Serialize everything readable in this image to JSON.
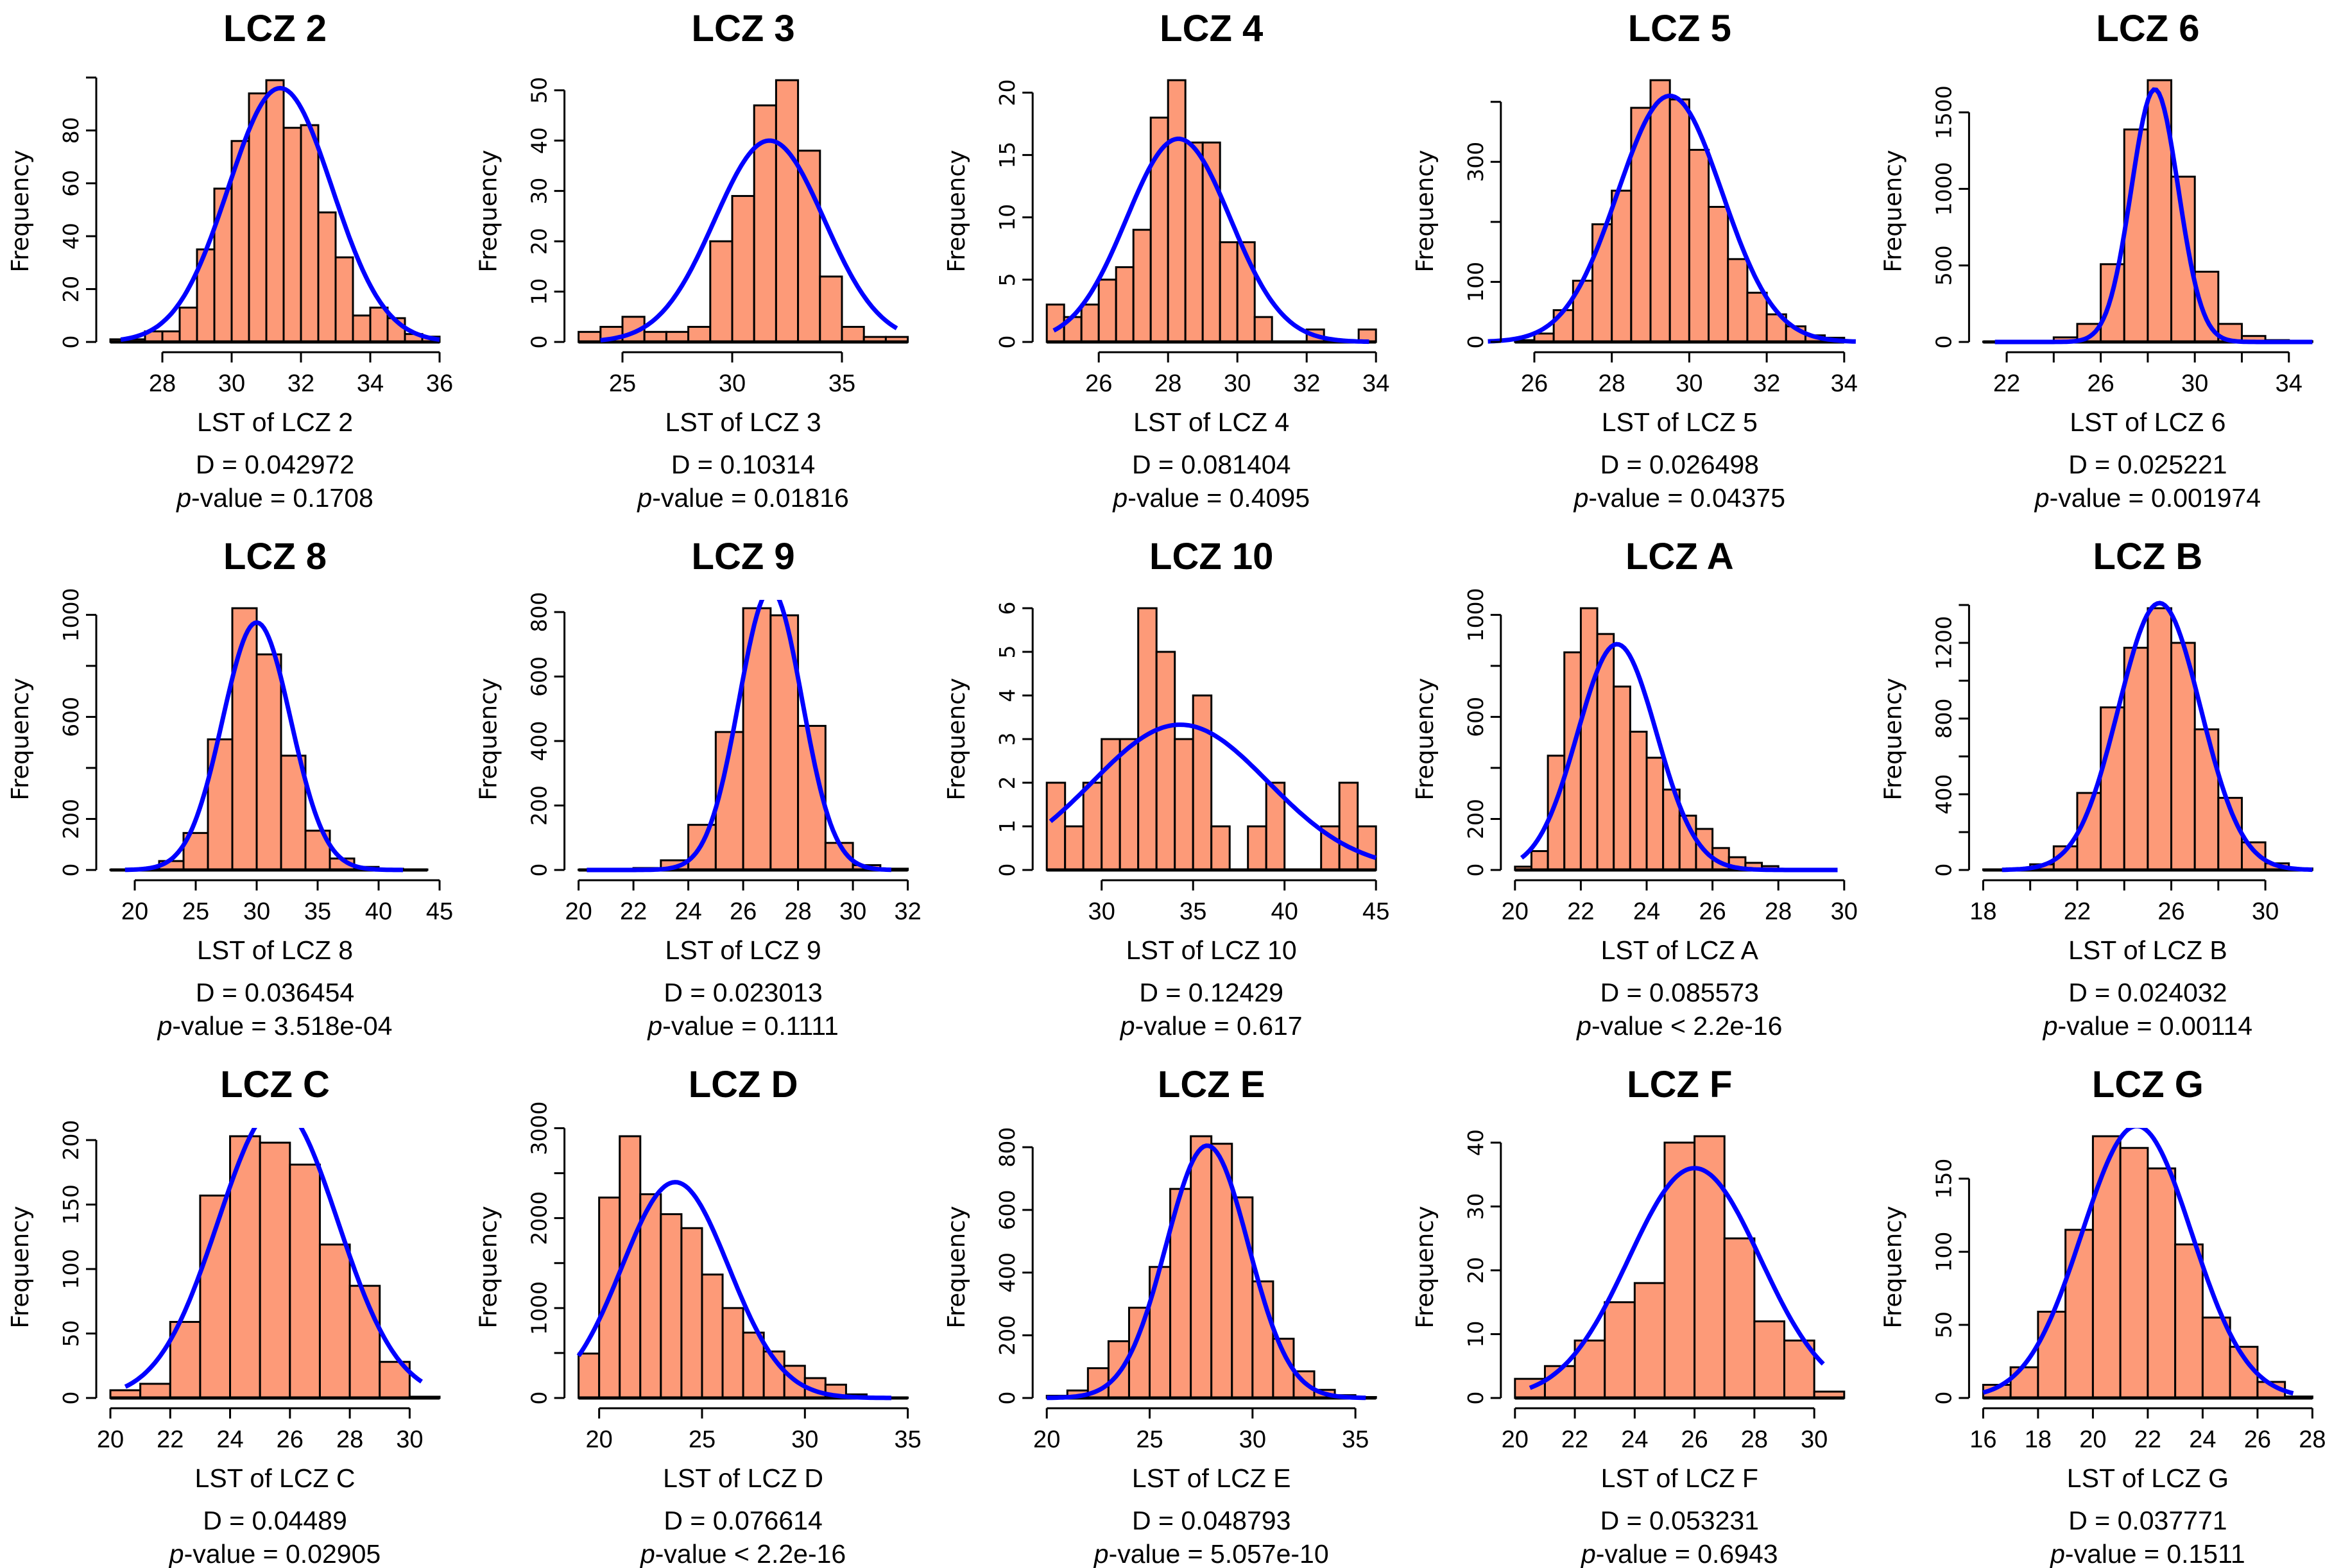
{
  "style": {
    "bar_fill": "#fd9a78",
    "bar_stroke": "#000000",
    "curve_color": "#0000ff"
  },
  "chart_data": [
    {
      "type": "bar",
      "title": "LCZ 2",
      "xlabel": "LST of LCZ 2",
      "ylabel": "Frequency",
      "stat_d": "D = 0.042972",
      "stat_p_italic": "p",
      "stat_p": "-value = 0.1708",
      "bin_start": 26.5,
      "bin_width": 0.5,
      "counts": [
        1,
        1,
        4,
        4,
        13,
        35,
        58,
        76,
        94,
        99,
        81,
        82,
        49,
        32,
        10,
        13,
        9,
        3,
        2
      ],
      "xticks": [
        28,
        30,
        32,
        34,
        36
      ],
      "xtick_labels": [
        "28",
        "30",
        "32",
        "34",
        "36"
      ],
      "yticks": [
        0,
        20,
        40,
        60,
        80,
        100
      ],
      "ytick_labels": [
        "0",
        "20",
        "40",
        "60",
        "80",
        ""
      ],
      "curve": {
        "mean": 31.4,
        "sd": 1.5,
        "peak": 96,
        "range": [
          26.8,
          36
        ]
      }
    },
    {
      "type": "bar",
      "title": "LCZ 3",
      "xlabel": "LST of LCZ 3",
      "ylabel": "Frequency",
      "stat_d": "D = 0.10314",
      "stat_p_italic": "p",
      "stat_p": "-value = 0.01816",
      "bin_start": 23,
      "bin_width": 1,
      "counts": [
        2,
        3,
        5,
        2,
        2,
        3,
        20,
        29,
        47,
        52,
        38,
        13,
        3,
        1,
        1
      ],
      "xticks": [
        25,
        30,
        35
      ],
      "xtick_labels": [
        "25",
        "30",
        "35"
      ],
      "yticks": [
        0,
        10,
        20,
        30,
        40,
        50
      ],
      "ytick_labels": [
        "0",
        "10",
        "20",
        "30",
        "40",
        "50"
      ],
      "curve": {
        "mean": 31.7,
        "sd": 2.5,
        "peak": 40,
        "range": [
          24,
          37.5
        ]
      }
    },
    {
      "type": "bar",
      "title": "LCZ 4",
      "xlabel": "LST of LCZ 4",
      "ylabel": "Frequency",
      "stat_d": "D = 0.081404",
      "stat_p_italic": "p",
      "stat_p": "-value = 0.4095",
      "bin_start": 24.5,
      "bin_width": 0.5,
      "counts": [
        3,
        2,
        3,
        5,
        6,
        9,
        18,
        21,
        16,
        16,
        8,
        8,
        2,
        0,
        0,
        1,
        0,
        0,
        1
      ],
      "xticks": [
        26,
        28,
        30,
        32,
        34
      ],
      "xtick_labels": [
        "26",
        "28",
        "30",
        "32",
        "34"
      ],
      "yticks": [
        0,
        5,
        10,
        15,
        20
      ],
      "ytick_labels": [
        "0",
        "5",
        "10",
        "15",
        "20"
      ],
      "curve": {
        "mean": 28.3,
        "sd": 1.5,
        "peak": 16.3,
        "range": [
          24.7,
          33.8
        ]
      }
    },
    {
      "type": "bar",
      "title": "LCZ 5",
      "xlabel": "LST of LCZ 5",
      "ylabel": "Frequency",
      "stat_d": "D = 0.026498",
      "stat_p_italic": "p",
      "stat_p": "-value = 0.04375",
      "bin_start": 25.5,
      "bin_width": 0.5,
      "counts": [
        3,
        14,
        53,
        102,
        196,
        252,
        390,
        436,
        404,
        320,
        225,
        138,
        82,
        46,
        26,
        11,
        7
      ],
      "xticks": [
        26,
        28,
        30,
        32,
        34
      ],
      "xtick_labels": [
        "26",
        "28",
        "30",
        "32",
        "34"
      ],
      "yticks": [
        0,
        100,
        200,
        300,
        400
      ],
      "ytick_labels": [
        "0",
        "100",
        "",
        "300",
        ""
      ],
      "curve": {
        "mean": 29.5,
        "sd": 1.35,
        "peak": 410,
        "range": [
          24.8,
          34.3
        ]
      }
    },
    {
      "type": "bar",
      "title": "LCZ 6",
      "xlabel": "LST of LCZ 6",
      "ylabel": "Frequency",
      "stat_d": "D = 0.025221",
      "stat_p_italic": "p",
      "stat_p": "-value = 0.001974",
      "bin_start": 21,
      "bin_width": 1,
      "counts": [
        2,
        3,
        5,
        30,
        118,
        508,
        1388,
        1710,
        1080,
        459,
        118,
        39,
        12,
        5
      ],
      "xticks": [
        22,
        24,
        26,
        28,
        30,
        32,
        34
      ],
      "xtick_labels": [
        "22",
        "",
        "26",
        "",
        "30",
        "",
        "34"
      ],
      "yticks": [
        0,
        500,
        1000,
        1500
      ],
      "ytick_labels": [
        "0",
        "500",
        "1000",
        "1500"
      ],
      "curve": {
        "mean": 28.3,
        "sd": 1.0,
        "peak": 1650,
        "range": [
          21.5,
          35
        ]
      }
    },
    {
      "type": "bar",
      "title": "LCZ 8",
      "xlabel": "LST of LCZ 8",
      "ylabel": "Frequency",
      "stat_d": "D = 0.036454",
      "stat_p_italic": "p",
      "stat_p": "-value = 3.518e-04",
      "bin_start": 18,
      "bin_width": 2,
      "counts": [
        1,
        4,
        35,
        145,
        512,
        1026,
        845,
        448,
        154,
        45,
        12,
        5,
        2
      ],
      "xticks": [
        20,
        25,
        30,
        35,
        40,
        45
      ],
      "xtick_labels": [
        "20",
        "25",
        "30",
        "35",
        "40",
        "45"
      ],
      "yticks": [
        0,
        200,
        400,
        600,
        800,
        1000
      ],
      "ytick_labels": [
        "0",
        "200",
        "",
        "600",
        "",
        "1000"
      ],
      "curve": {
        "mean": 30,
        "sd": 2.8,
        "peak": 970,
        "range": [
          19.2,
          42
        ]
      }
    },
    {
      "type": "bar",
      "title": "LCZ 9",
      "xlabel": "LST of LCZ 9",
      "ylabel": "Frequency",
      "stat_d": "D = 0.023013",
      "stat_p_italic": "p",
      "stat_p": "-value = 0.1111",
      "bin_start": 20,
      "bin_width": 1,
      "counts": [
        1,
        2,
        6,
        30,
        140,
        428,
        812,
        790,
        447,
        84,
        15,
        4
      ],
      "xticks": [
        20,
        22,
        24,
        26,
        28,
        30,
        32
      ],
      "xtick_labels": [
        "20",
        "22",
        "24",
        "26",
        "28",
        "30",
        "32"
      ],
      "yticks": [
        0,
        200,
        400,
        600,
        800
      ],
      "ytick_labels": [
        "0",
        "200",
        "400",
        "600",
        "800"
      ],
      "curve": {
        "mean": 27,
        "sd": 1.15,
        "peak": 870,
        "range": [
          20.3,
          31.4
        ]
      }
    },
    {
      "type": "bar",
      "title": "LCZ 10",
      "xlabel": "LST of LCZ 10",
      "ylabel": "Frequency",
      "stat_d": "D = 0.12429",
      "stat_p_italic": "p",
      "stat_p": "-value = 0.617",
      "bin_start": 27,
      "bin_width": 1,
      "counts": [
        2,
        1,
        2,
        3,
        3,
        6,
        5,
        3,
        4,
        1,
        0,
        1,
        2,
        0,
        0,
        1,
        2,
        1
      ],
      "xticks": [
        30,
        35,
        40,
        45
      ],
      "xtick_labels": [
        "30",
        "35",
        "40",
        "45"
      ],
      "yticks": [
        0,
        1,
        2,
        3,
        4,
        5,
        6
      ],
      "ytick_labels": [
        "0",
        "1",
        "2",
        "3",
        "4",
        "5",
        "6"
      ],
      "curve": {
        "mean": 34.3,
        "sd": 4.8,
        "peak": 3.33,
        "range": [
          27.2,
          45
        ]
      }
    },
    {
      "type": "bar",
      "title": "LCZ A",
      "xlabel": "LST of LCZ A",
      "ylabel": "Frequency",
      "stat_d": "D = 0.085573",
      "stat_p_italic": "p",
      "stat_p": "-value < 2.2e-16",
      "bin_start": 20,
      "bin_width": 0.5,
      "counts": [
        13,
        74,
        448,
        853,
        1026,
        925,
        719,
        542,
        440,
        315,
        213,
        161,
        86,
        50,
        28,
        15
      ],
      "xticks": [
        20,
        22,
        24,
        26,
        28,
        30
      ],
      "xtick_labels": [
        "20",
        "22",
        "24",
        "26",
        "28",
        "30"
      ],
      "yticks": [
        0,
        200,
        400,
        600,
        800,
        1000
      ],
      "ytick_labels": [
        "0",
        "200",
        "",
        "600",
        "",
        "1000"
      ],
      "curve": {
        "mean": 23.1,
        "sd": 1.2,
        "peak": 885,
        "range": [
          20.2,
          29.8
        ]
      }
    },
    {
      "type": "bar",
      "title": "LCZ B",
      "xlabel": "LST of LCZ B",
      "ylabel": "Frequency",
      "stat_d": "D = 0.024032",
      "stat_p_italic": "p",
      "stat_p": "-value = 0.00114",
      "bin_start": 18,
      "bin_width": 1,
      "counts": [
        3,
        8,
        30,
        125,
        407,
        859,
        1174,
        1383,
        1200,
        743,
        381,
        146,
        35,
        8
      ],
      "xticks": [
        18,
        20,
        22,
        24,
        26,
        28,
        30
      ],
      "xtick_labels": [
        "18",
        "",
        "22",
        "",
        "26",
        "",
        "30"
      ],
      "yticks": [
        0,
        200,
        400,
        600,
        800,
        1000,
        1200,
        1400
      ],
      "ytick_labels": [
        "0",
        "",
        "400",
        "",
        "800",
        "",
        "1200",
        ""
      ],
      "curve": {
        "mean": 25.5,
        "sd": 1.75,
        "peak": 1410,
        "range": [
          18.8,
          32
        ]
      }
    },
    {
      "type": "bar",
      "title": "LCZ C",
      "xlabel": "LST of LCZ C",
      "ylabel": "Frequency",
      "stat_d": "D = 0.04489",
      "stat_p_italic": "p",
      "stat_p": "-value = 0.02905",
      "bin_start": 20,
      "bin_width": 1,
      "counts": [
        6,
        11,
        59,
        157,
        203,
        198,
        181,
        119,
        87,
        28,
        1
      ],
      "xticks": [
        20,
        22,
        24,
        26,
        28,
        30
      ],
      "xtick_labels": [
        "20",
        "22",
        "24",
        "26",
        "28",
        "30"
      ],
      "yticks": [
        0,
        50,
        100,
        150,
        200
      ],
      "ytick_labels": [
        "0",
        "50",
        "100",
        "150",
        "200"
      ],
      "curve": {
        "mean": 25.6,
        "sd": 2.0,
        "peak": 226,
        "range": [
          20.5,
          30.4
        ]
      }
    },
    {
      "type": "bar",
      "title": "LCZ D",
      "xlabel": "LST of LCZ D",
      "ylabel": "Frequency",
      "stat_d": "D = 0.076614",
      "stat_p_italic": "p",
      "stat_p": "-value < 2.2e-16",
      "bin_start": 19,
      "bin_width": 1,
      "counts": [
        494,
        2229,
        2911,
        2266,
        2044,
        1889,
        1373,
        1000,
        727,
        517,
        358,
        221,
        148,
        40,
        10,
        5
      ],
      "xticks": [
        20,
        25,
        30,
        35
      ],
      "xtick_labels": [
        "20",
        "25",
        "30",
        "35"
      ],
      "yticks": [
        0,
        500,
        1000,
        1500,
        2000,
        2500,
        3000
      ],
      "ytick_labels": [
        "0",
        "",
        "1000",
        "",
        "2000",
        "",
        "3000"
      ],
      "curve": {
        "mean": 23.7,
        "sd": 2.6,
        "peak": 2400,
        "range": [
          19,
          34.2
        ]
      }
    },
    {
      "type": "bar",
      "title": "LCZ E",
      "xlabel": "LST of LCZ E",
      "ylabel": "Frequency",
      "stat_d": "D = 0.048793",
      "stat_p_italic": "p",
      "stat_p": "-value = 5.057e-10",
      "bin_start": 20,
      "bin_width": 1,
      "counts": [
        7,
        24,
        95,
        181,
        288,
        418,
        667,
        835,
        811,
        640,
        372,
        189,
        85,
        26,
        9,
        3
      ],
      "xticks": [
        20,
        25,
        30,
        35
      ],
      "xtick_labels": [
        "20",
        "25",
        "30",
        "35"
      ],
      "yticks": [
        0,
        200,
        400,
        600,
        800
      ],
      "ytick_labels": [
        "0",
        "200",
        "400",
        "600",
        "800"
      ],
      "curve": {
        "mean": 27.8,
        "sd": 2.0,
        "peak": 805,
        "range": [
          20,
          35.5
        ]
      }
    },
    {
      "type": "bar",
      "title": "LCZ F",
      "xlabel": "LST of LCZ F",
      "ylabel": "Frequency",
      "stat_d": "D = 0.053231",
      "stat_p_italic": "p",
      "stat_p": "-value = 0.6943",
      "bin_start": 20,
      "bin_width": 1,
      "counts": [
        3,
        5,
        9,
        15,
        18,
        40,
        41,
        25,
        12,
        9,
        1
      ],
      "xticks": [
        20,
        22,
        24,
        26,
        28,
        30
      ],
      "xtick_labels": [
        "20",
        "22",
        "24",
        "26",
        "28",
        "30"
      ],
      "yticks": [
        0,
        10,
        20,
        30,
        40
      ],
      "ytick_labels": [
        "0",
        "10",
        "20",
        "30",
        "40"
      ],
      "curve": {
        "mean": 26,
        "sd": 2.2,
        "peak": 36,
        "range": [
          20.5,
          30.3
        ]
      }
    },
    {
      "type": "bar",
      "title": "LCZ G",
      "xlabel": "LST of LCZ G",
      "ylabel": "Frequency",
      "stat_d": "D = 0.037771",
      "stat_p_italic": "p",
      "stat_p": "-value = 0.1511",
      "bin_start": 16,
      "bin_width": 1,
      "counts": [
        9,
        21,
        59,
        115,
        179,
        171,
        157,
        105,
        55,
        35,
        11,
        1
      ],
      "xticks": [
        16,
        18,
        20,
        22,
        24,
        26,
        28
      ],
      "xtick_labels": [
        "16",
        "18",
        "20",
        "22",
        "24",
        "26",
        "28"
      ],
      "yticks": [
        0,
        50,
        100,
        150
      ],
      "ytick_labels": [
        "0",
        "50",
        "100",
        "150"
      ],
      "curve": {
        "mean": 21.6,
        "sd": 2.0,
        "peak": 186,
        "range": [
          16,
          27.3
        ]
      }
    }
  ]
}
